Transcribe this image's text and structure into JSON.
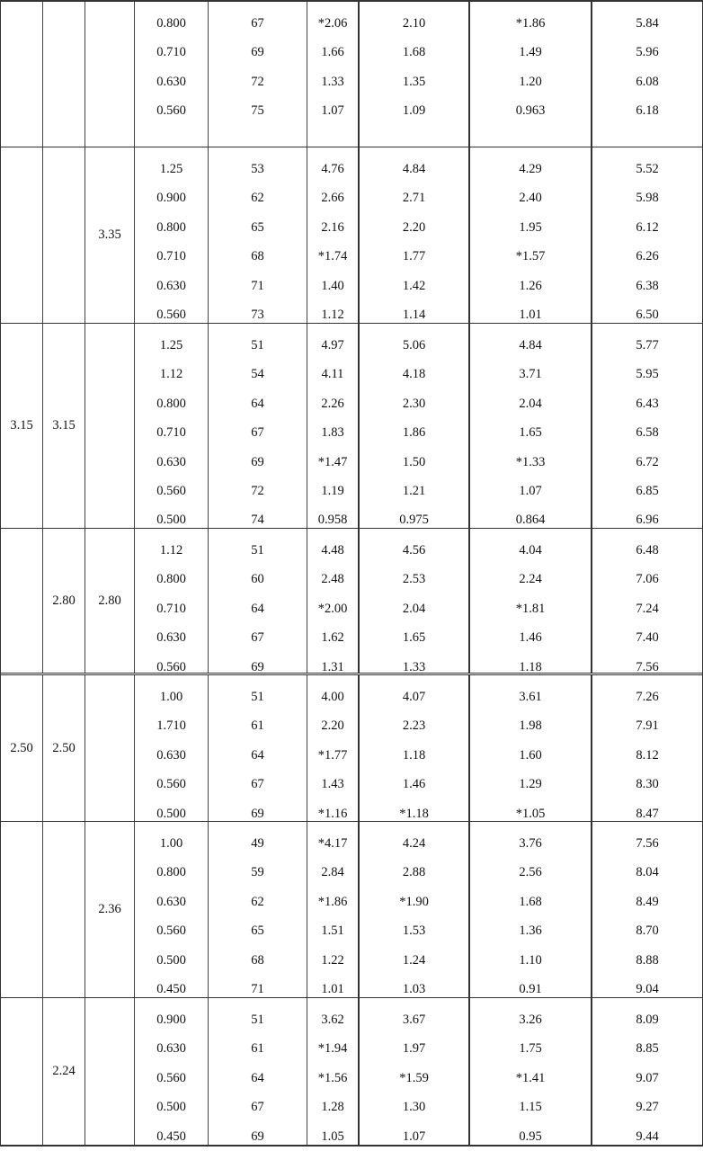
{
  "groups": [
    {
      "col1": "",
      "col2": "",
      "col3": "",
      "rows": [
        [
          "0.800",
          "67",
          "*2.06",
          "2.10",
          "*1.86",
          "5.84"
        ],
        [
          "0.710",
          "69",
          "1.66",
          "1.68",
          "1.49",
          "5.96"
        ],
        [
          "0.630",
          "72",
          "1.33",
          "1.35",
          "1.20",
          "6.08"
        ],
        [
          "0.560",
          "75",
          "1.07",
          "1.09",
          "0.963",
          "6.18"
        ]
      ]
    },
    {
      "col1": "",
      "col2": "",
      "col3": "3.35",
      "rows": [
        [
          "1.25",
          "53",
          "4.76",
          "4.84",
          "4.29",
          "5.52"
        ],
        [
          "0.900",
          "62",
          "2.66",
          "2.71",
          "2.40",
          "5.98"
        ],
        [
          "0.800",
          "65",
          "2.16",
          "2.20",
          "1.95",
          "6.12"
        ],
        [
          "0.710",
          "68",
          "*1.74",
          "1.77",
          "*1.57",
          "6.26"
        ],
        [
          "0.630",
          "71",
          "1.40",
          "1.42",
          "1.26",
          "6.38"
        ],
        [
          "0.560",
          "73",
          "1.12",
          "1.14",
          "1.01",
          "6.50"
        ]
      ]
    },
    {
      "col1": "3.15",
      "col2": "3.15",
      "col3": "",
      "rows": [
        [
          "1.25",
          "51",
          "4.97",
          "5.06",
          "4.84",
          "5.77"
        ],
        [
          "1.12",
          "54",
          "4.11",
          "4.18",
          "3.71",
          "5.95"
        ],
        [
          "0.800",
          "64",
          "2.26",
          "2.30",
          "2.04",
          "6.43"
        ],
        [
          "0.710",
          "67",
          "1.83",
          "1.86",
          "1.65",
          "6.58"
        ],
        [
          "0.630",
          "69",
          "*1.47",
          "1.50",
          "*1.33",
          "6.72"
        ],
        [
          "0.560",
          "72",
          "1.19",
          "1.21",
          "1.07",
          "6.85"
        ],
        [
          "0.500",
          "74",
          "0.958",
          "0.975",
          "0.864",
          "6.96"
        ]
      ]
    },
    {
      "col1": "",
      "col2": "2.80",
      "col3": "2.80",
      "rows": [
        [
          "1.12",
          "51",
          "4.48",
          "4.56",
          "4.04",
          "6.48"
        ],
        [
          "0.800",
          "60",
          "2.48",
          "2.53",
          "2.24",
          "7.06"
        ],
        [
          "0.710",
          "64",
          "*2.00",
          "2.04",
          "*1.81",
          "7.24"
        ],
        [
          "0.630",
          "67",
          "1.62",
          "1.65",
          "1.46",
          "7.40"
        ],
        [
          "0.560",
          "69",
          "1.31",
          "1.33",
          "1.18",
          "7.56"
        ]
      ]
    },
    {
      "col1": "2.50",
      "col2": "2.50",
      "col3": "",
      "rows": [
        [
          "1.00",
          "51",
          "4.00",
          "4.07",
          "3.61",
          "7.26"
        ],
        [
          "1.710",
          "61",
          "2.20",
          "2.23",
          "1.98",
          "7.91"
        ],
        [
          "0.630",
          "64",
          "*1.77",
          "1.18",
          "1.60",
          "8.12"
        ],
        [
          "0.560",
          "67",
          "1.43",
          "1.46",
          "1.29",
          "8.30"
        ],
        [
          "0.500",
          "69",
          "*1.16",
          "*1.18",
          "*1.05",
          "8.47"
        ]
      ]
    },
    {
      "col1": "",
      "col2": "",
      "col3": "2.36",
      "rows": [
        [
          "1.00",
          "49",
          "*4.17",
          "4.24",
          "3.76",
          "7.56"
        ],
        [
          "0.800",
          "59",
          "2.84",
          "2.88",
          "2.56",
          "8.04"
        ],
        [
          "0.630",
          "62",
          "*1.86",
          "*1.90",
          "1.68",
          "8.49"
        ],
        [
          "0.560",
          "65",
          "1.51",
          "1.53",
          "1.36",
          "8.70"
        ],
        [
          "0.500",
          "68",
          "1.22",
          "1.24",
          "1.10",
          "8.88"
        ],
        [
          "0.450",
          "71",
          "1.01",
          "1.03",
          "0.91",
          "9.04"
        ]
      ]
    },
    {
      "col1": "",
      "col2": "2.24",
      "col3": "",
      "rows": [
        [
          "0.900",
          "51",
          "3.62",
          "3.67",
          "3.26",
          "8.09"
        ],
        [
          "0.630",
          "61",
          "*1.94",
          "1.97",
          "1.75",
          "8.85"
        ],
        [
          "0.560",
          "64",
          "*1.56",
          "*1.59",
          "*1.41",
          "9.07"
        ],
        [
          "0.500",
          "67",
          "1.28",
          "1.30",
          "1.15",
          "9.27"
        ],
        [
          "0.450",
          "69",
          "1.05",
          "1.07",
          "0.95",
          "9.44"
        ]
      ]
    }
  ]
}
